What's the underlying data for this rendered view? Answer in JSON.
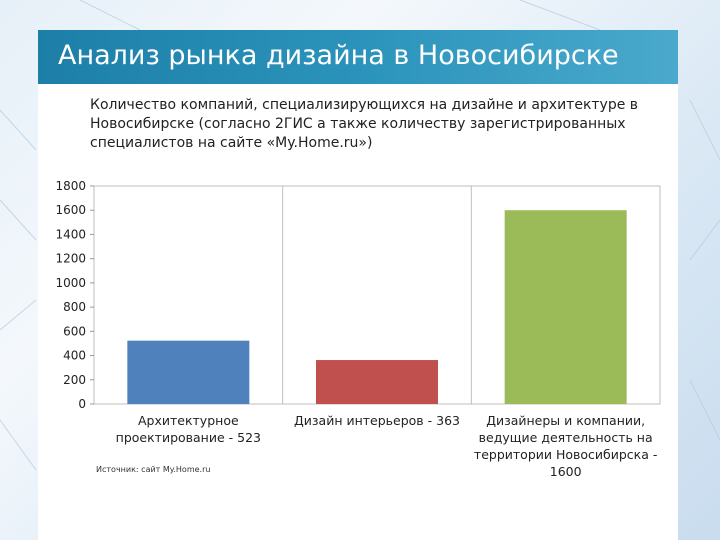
{
  "slide": {
    "title": "Анализ рынка дизайна в Новосибирске",
    "subtitle": "Количество компаний, специализирующихся на дизайне и архитектуре в Новосибирске (согласно 2ГИС а также количеству зарегистрированных специалистов на сайте «My.Home.ru»)",
    "source": "Источник: сайт My.Home.ru"
  },
  "colors": {
    "title_bar": "#2b93bb",
    "bar_blue": "#4f81bd",
    "bar_red": "#c0504d",
    "bar_green": "#9bbb59"
  },
  "chart_data": {
    "type": "bar",
    "categories": [
      "Архитектурное проектирование - 523",
      "Дизайн интерьеров - 363",
      "Дизайнеры и компании, ведущие деятельность на территории Новосибирска - 1600"
    ],
    "values": [
      523,
      363,
      1600
    ],
    "bar_colors": [
      "#4f81bd",
      "#c0504d",
      "#9bbb59"
    ],
    "ylim": [
      0,
      1800
    ],
    "yticks": [
      "0",
      "200",
      "400",
      "600",
      "800",
      "1000",
      "1200",
      "1400",
      "1600",
      "1800"
    ],
    "grid": false,
    "legend": "none"
  }
}
